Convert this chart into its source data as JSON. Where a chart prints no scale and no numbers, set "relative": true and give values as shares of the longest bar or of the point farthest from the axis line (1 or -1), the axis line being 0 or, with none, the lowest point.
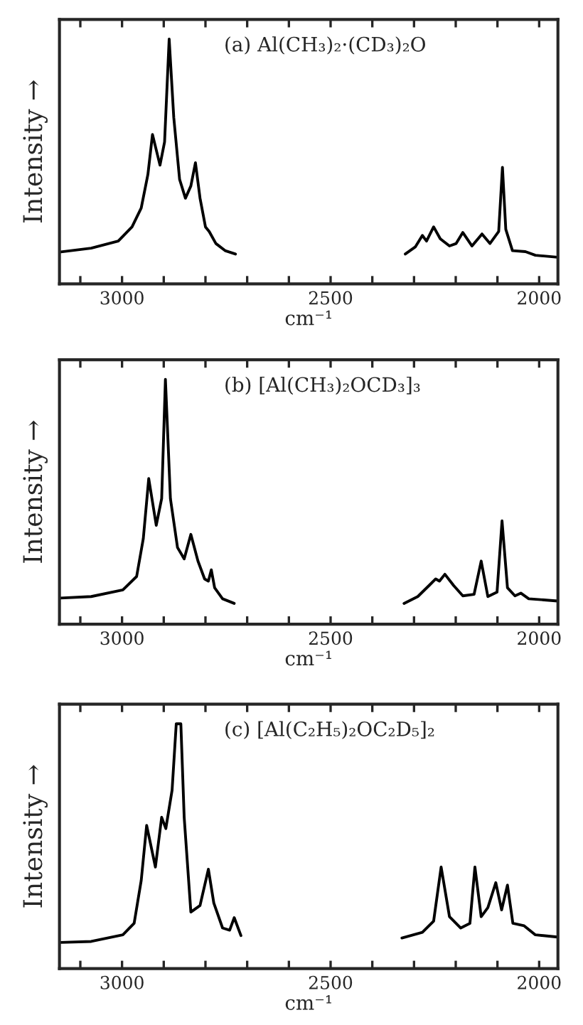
{
  "chart_data": [
    {
      "type": "line",
      "relative": true,
      "title": "(a) Al(CH₃)₂·(CD₃)₂O",
      "xlabel": "cm⁻¹",
      "ylabel": "Intensity →",
      "tick_labels": "x",
      "xlim": [
        3150,
        1955
      ],
      "xticks": [
        {
          "value": 3100,
          "label": null
        },
        3000,
        {
          "value": 2900,
          "label": null
        },
        {
          "value": 2800,
          "label": null
        },
        {
          "value": 2700,
          "label": null
        },
        {
          "value": 2600,
          "label": null
        },
        2500,
        {
          "value": 2400,
          "label": null
        },
        {
          "value": 2300,
          "label": null
        },
        {
          "value": 2200,
          "label": null
        },
        {
          "value": 2100,
          "label": null
        },
        2000
      ],
      "series": [
        {
          "color": "#000000",
          "x": [
            3150,
            3074,
            3009,
            2976,
            2954,
            2938,
            2927,
            2909,
            2898,
            2887,
            2876,
            2862,
            2848,
            2835,
            2824,
            2813,
            2800,
            2791,
            2775,
            2753,
            2728,
            2500,
            2321,
            2297,
            2280,
            2270,
            2253,
            2237,
            2215,
            2199,
            2183,
            2161,
            2137,
            2118,
            2097,
            2088,
            2080,
            2064,
            2033,
            2009,
            1956
          ],
          "values": [
            0.13,
            0.146,
            0.175,
            0.233,
            0.31,
            0.447,
            0.61,
            0.485,
            0.58,
            1.0,
            0.68,
            0.427,
            0.35,
            0.4,
            0.495,
            0.35,
            0.233,
            0.214,
            0.165,
            0.136,
            0.122,
            null,
            0.122,
            0.151,
            0.198,
            0.175,
            0.233,
            0.184,
            0.155,
            0.165,
            0.21,
            0.155,
            0.204,
            0.165,
            0.214,
            0.476,
            0.223,
            0.136,
            0.132,
            0.117,
            0.109
          ]
        }
      ]
    },
    {
      "type": "line",
      "relative": true,
      "title": "(b) [Al(CH₃)₂OCD₃]₃",
      "xlabel": "cm⁻¹",
      "ylabel": "Intensity →",
      "tick_labels": "x",
      "xlim": [
        3150,
        1955
      ],
      "xticks": [
        {
          "value": 3100,
          "label": null
        },
        3000,
        {
          "value": 2900,
          "label": null
        },
        {
          "value": 2800,
          "label": null
        },
        {
          "value": 2700,
          "label": null
        },
        {
          "value": 2600,
          "label": null
        },
        2500,
        {
          "value": 2400,
          "label": null
        },
        {
          "value": 2300,
          "label": null
        },
        {
          "value": 2200,
          "label": null
        },
        {
          "value": 2100,
          "label": null
        },
        2000
      ],
      "series": [
        {
          "color": "#000000",
          "x": [
            3148,
            3074,
            2998,
            2965,
            2949,
            2936,
            2918,
            2905,
            2896,
            2884,
            2867,
            2851,
            2835,
            2818,
            2802,
            2793,
            2786,
            2778,
            2759,
            2731,
            2500,
            2324,
            2291,
            2264,
            2248,
            2239,
            2226,
            2205,
            2183,
            2156,
            2139,
            2123,
            2101,
            2089,
            2076,
            2058,
            2044,
            2025,
            1956
          ],
          "values": [
            0.107,
            0.113,
            0.14,
            0.195,
            0.35,
            0.595,
            0.404,
            0.513,
            1.0,
            0.513,
            0.313,
            0.267,
            0.367,
            0.258,
            0.185,
            0.176,
            0.222,
            0.149,
            0.104,
            0.085,
            null,
            0.085,
            0.113,
            0.158,
            0.185,
            0.176,
            0.204,
            0.158,
            0.116,
            0.122,
            0.258,
            0.113,
            0.131,
            0.422,
            0.149,
            0.116,
            0.127,
            0.104,
            0.095
          ]
        }
      ]
    },
    {
      "type": "line",
      "relative": true,
      "title": "(c) [Al(C₂H₅)₂OC₂D₅]₂",
      "xlabel": "cm⁻¹",
      "ylabel": "Intensity →",
      "tick_labels": "x",
      "xlim": [
        3150,
        1955
      ],
      "xticks": [
        {
          "value": 3100,
          "label": null
        },
        3000,
        {
          "value": 2900,
          "label": null
        },
        {
          "value": 2800,
          "label": null
        },
        {
          "value": 2700,
          "label": null
        },
        {
          "value": 2600,
          "label": null
        },
        2500,
        {
          "value": 2400,
          "label": null
        },
        {
          "value": 2300,
          "label": null
        },
        {
          "value": 2200,
          "label": null
        },
        {
          "value": 2100,
          "label": null
        },
        2000
      ],
      "series": [
        {
          "color": "#000000",
          "x": [
            3148,
            3074,
            2998,
            2971,
            2954,
            2941,
            2920,
            2905,
            2895,
            2880,
            2870,
            2859,
            2851,
            2835,
            2813,
            2793,
            2780,
            2759,
            2742,
            2731,
            2715,
            2500,
            2329,
            2280,
            2253,
            2235,
            2215,
            2188,
            2166,
            2154,
            2139,
            2123,
            2104,
            2090,
            2076,
            2063,
            2036,
            2009,
            1956
          ],
          "values": [
            0.107,
            0.111,
            0.138,
            0.185,
            0.36,
            0.585,
            0.415,
            0.618,
            0.572,
            0.729,
            1.0,
            1.0,
            0.618,
            0.231,
            0.258,
            0.406,
            0.268,
            0.166,
            0.157,
            0.208,
            0.135,
            null,
            0.125,
            0.148,
            0.194,
            0.415,
            0.212,
            0.166,
            0.185,
            0.415,
            0.212,
            0.249,
            0.351,
            0.24,
            0.341,
            0.185,
            0.175,
            0.138,
            0.129
          ]
        }
      ]
    }
  ]
}
